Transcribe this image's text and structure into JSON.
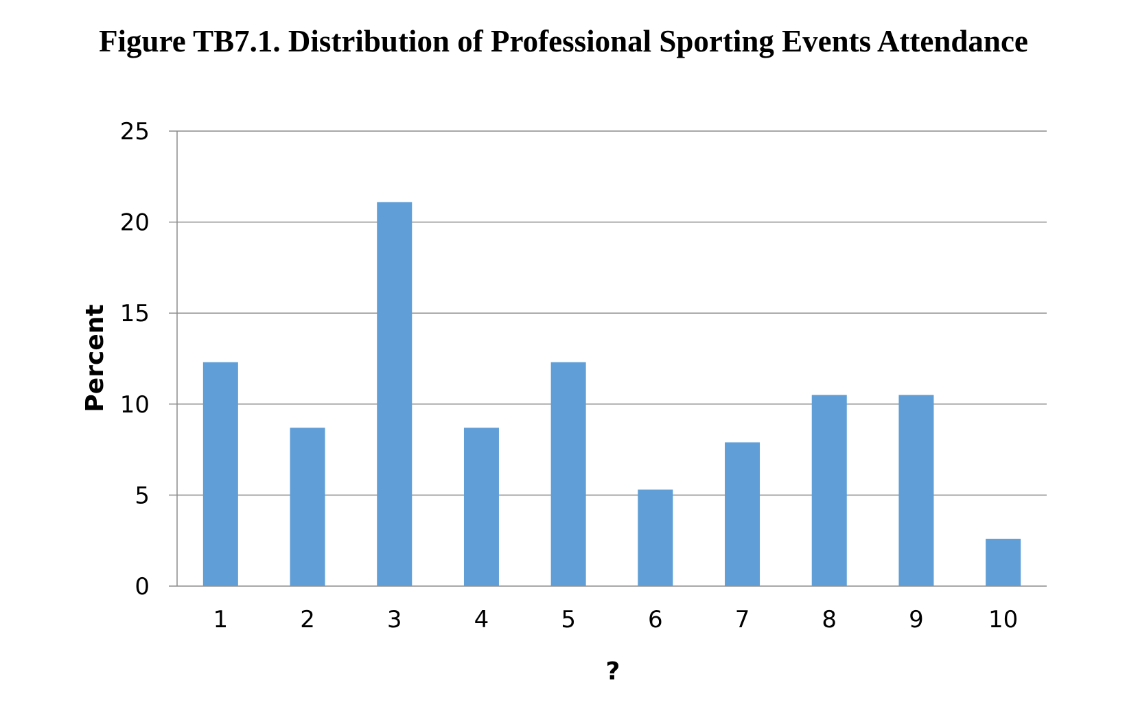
{
  "chart_data": {
    "type": "bar",
    "title": "Figure TB7.1. Distribution of Professional Sporting Events Attendance",
    "xlabel": "?",
    "ylabel": "Percent",
    "categories": [
      "1",
      "2",
      "3",
      "4",
      "5",
      "6",
      "7",
      "8",
      "9",
      "10"
    ],
    "values": [
      12.3,
      8.7,
      21.1,
      8.7,
      12.3,
      5.3,
      7.9,
      10.5,
      10.5,
      2.6
    ],
    "ylim": [
      0,
      25
    ],
    "yticks": [
      "0",
      "5",
      "10",
      "15",
      "20",
      "25"
    ],
    "grid": true,
    "legend": "none",
    "bar_color": "#5f9ed6"
  }
}
